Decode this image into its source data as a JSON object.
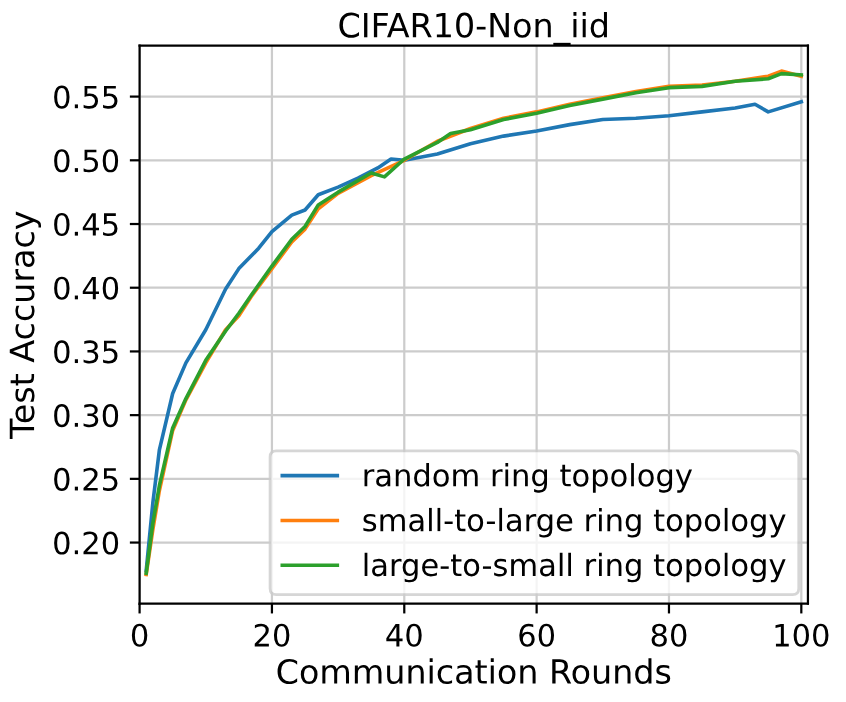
{
  "chart_data": {
    "type": "line",
    "title": "CIFAR10-Non_iid",
    "xlabel": "Communication Rounds",
    "ylabel": "Test Accuracy",
    "xlim": [
      0,
      101
    ],
    "ylim": [
      0.152,
      0.59
    ],
    "xticks": [
      0,
      20,
      40,
      60,
      80,
      100
    ],
    "yticks": [
      {
        "value": 0.2,
        "label": "0.20"
      },
      0.25,
      {
        "value": 0.3,
        "label": "0.30"
      },
      0.35,
      {
        "value": 0.4,
        "label": "0.40"
      },
      0.45,
      {
        "value": 0.5,
        "label": "0.50"
      },
      0.55
    ],
    "grid": true,
    "legend": "bottom right",
    "marker": "none",
    "line_style": "solid",
    "series": [
      {
        "name": "random ring topology",
        "color": "#1f77b4",
        "x": [
          1,
          2,
          3,
          5,
          7,
          10,
          13,
          15,
          18,
          20,
          23,
          25,
          27,
          30,
          33,
          36,
          38,
          40,
          45,
          50,
          55,
          60,
          65,
          70,
          75,
          80,
          85,
          90,
          93,
          95,
          100
        ],
        "values": [
          0.178,
          0.231,
          0.273,
          0.317,
          0.341,
          0.367,
          0.399,
          0.415,
          0.431,
          0.444,
          0.457,
          0.461,
          0.473,
          0.479,
          0.486,
          0.494,
          0.501,
          0.5,
          0.505,
          0.513,
          0.519,
          0.523,
          0.528,
          0.532,
          0.533,
          0.535,
          0.538,
          0.541,
          0.544,
          0.538,
          0.546
        ]
      },
      {
        "name": "small-to-large ring topology",
        "color": "#ff7f0e",
        "x": [
          1,
          2,
          3,
          5,
          7,
          10,
          13,
          15,
          17,
          20,
          23,
          25,
          27,
          30,
          35,
          40,
          45,
          50,
          55,
          60,
          65,
          70,
          75,
          80,
          85,
          90,
          95,
          97,
          100
        ],
        "values": [
          0.175,
          0.21,
          0.241,
          0.288,
          0.312,
          0.341,
          0.367,
          0.378,
          0.394,
          0.415,
          0.436,
          0.446,
          0.462,
          0.474,
          0.488,
          0.5,
          0.515,
          0.525,
          0.533,
          0.538,
          0.544,
          0.549,
          0.554,
          0.558,
          0.559,
          0.562,
          0.566,
          0.57,
          0.566
        ]
      },
      {
        "name": "large-to-small ring topology",
        "color": "#2ca02c",
        "x": [
          1,
          2,
          3,
          5,
          7,
          10,
          13,
          15,
          17,
          20,
          23,
          25,
          27,
          30,
          35,
          37,
          40,
          45,
          47,
          50,
          55,
          60,
          65,
          70,
          75,
          80,
          85,
          90,
          95,
          97,
          100
        ],
        "values": [
          0.176,
          0.215,
          0.245,
          0.29,
          0.313,
          0.343,
          0.366,
          0.38,
          0.395,
          0.417,
          0.438,
          0.448,
          0.465,
          0.475,
          0.49,
          0.487,
          0.501,
          0.514,
          0.521,
          0.524,
          0.532,
          0.537,
          0.543,
          0.548,
          0.553,
          0.557,
          0.558,
          0.562,
          0.564,
          0.568,
          0.567
        ]
      }
    ]
  }
}
